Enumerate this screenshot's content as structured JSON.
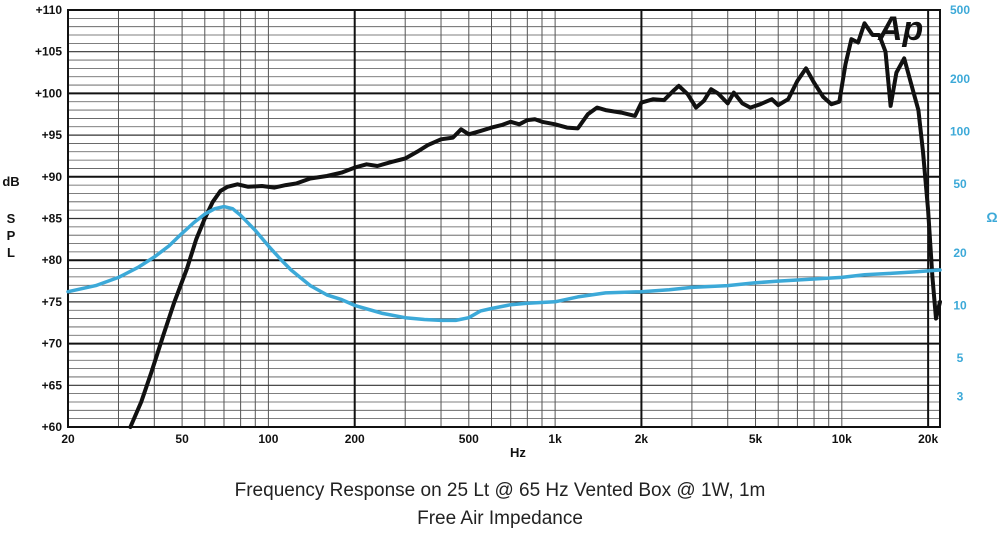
{
  "chart_data": {
    "type": "line",
    "title": "Frequency Response on 25 Lt @ 65 Hz Vented Box @ 1W, 1m",
    "subtitle": "Free Air Impedance",
    "logo": "Ap",
    "xlabel": "Hz",
    "ylabel": "dB SPL",
    "ylabel_right": "Ω",
    "x_scale": "log",
    "xlim": [
      20,
      22000
    ],
    "ylim": [
      60,
      110
    ],
    "y2_scale": "log",
    "y2lim": [
      2,
      500
    ],
    "grid": true,
    "x_ticks": [
      {
        "v": 20,
        "label": "20"
      },
      {
        "v": 50,
        "label": "50"
      },
      {
        "v": 100,
        "label": "100"
      },
      {
        "v": 200,
        "label": "200"
      },
      {
        "v": 500,
        "label": "500"
      },
      {
        "v": 1000,
        "label": "1k"
      },
      {
        "v": 2000,
        "label": "2k"
      },
      {
        "v": 5000,
        "label": "5k"
      },
      {
        "v": 10000,
        "label": "10k"
      },
      {
        "v": 20000,
        "label": "20k"
      }
    ],
    "y_ticks": [
      {
        "v": 60,
        "label": "+60"
      },
      {
        "v": 65,
        "label": "+65"
      },
      {
        "v": 70,
        "label": "+70"
      },
      {
        "v": 75,
        "label": "+75"
      },
      {
        "v": 80,
        "label": "+80"
      },
      {
        "v": 85,
        "label": "+85"
      },
      {
        "v": 90,
        "label": "+90"
      },
      {
        "v": 95,
        "label": "+95"
      },
      {
        "v": 100,
        "label": "+100"
      },
      {
        "v": 105,
        "label": "+105"
      },
      {
        "v": 110,
        "label": "+110"
      }
    ],
    "y2_ticks": [
      {
        "v": 3,
        "label": "3"
      },
      {
        "v": 5,
        "label": "5"
      },
      {
        "v": 10,
        "label": "10"
      },
      {
        "v": 20,
        "label": "20"
      },
      {
        "v": 50,
        "label": "50"
      },
      {
        "v": 100,
        "label": "100"
      },
      {
        "v": 200,
        "label": "200"
      },
      {
        "v": 500,
        "label": "500"
      }
    ],
    "series": [
      {
        "color": "#111111",
        "axis": "left",
        "points": [
          [
            33,
            60
          ],
          [
            36,
            63
          ],
          [
            39,
            66.5
          ],
          [
            43,
            71
          ],
          [
            47,
            75
          ],
          [
            52,
            79
          ],
          [
            56,
            82.5
          ],
          [
            60,
            85
          ],
          [
            64,
            87
          ],
          [
            68,
            88.3
          ],
          [
            72,
            88.8
          ],
          [
            78,
            89.1
          ],
          [
            85,
            88.8
          ],
          [
            95,
            88.9
          ],
          [
            105,
            88.7
          ],
          [
            115,
            89
          ],
          [
            125,
            89.2
          ],
          [
            140,
            89.8
          ],
          [
            160,
            90.1
          ],
          [
            180,
            90.5
          ],
          [
            200,
            91.1
          ],
          [
            220,
            91.5
          ],
          [
            240,
            91.3
          ],
          [
            270,
            91.8
          ],
          [
            300,
            92.2
          ],
          [
            330,
            93
          ],
          [
            360,
            93.8
          ],
          [
            400,
            94.5
          ],
          [
            440,
            94.7
          ],
          [
            470,
            95.7
          ],
          [
            500,
            95.1
          ],
          [
            550,
            95.5
          ],
          [
            600,
            95.9
          ],
          [
            650,
            96.2
          ],
          [
            700,
            96.6
          ],
          [
            750,
            96.3
          ],
          [
            800,
            96.8
          ],
          [
            850,
            96.9
          ],
          [
            900,
            96.6
          ],
          [
            1000,
            96.3
          ],
          [
            1100,
            95.9
          ],
          [
            1200,
            95.8
          ],
          [
            1300,
            97.5
          ],
          [
            1400,
            98.3
          ],
          [
            1500,
            98
          ],
          [
            1700,
            97.7
          ],
          [
            1900,
            97.3
          ],
          [
            2000,
            98.9
          ],
          [
            2200,
            99.3
          ],
          [
            2400,
            99.2
          ],
          [
            2600,
            100.4
          ],
          [
            2700,
            100.9
          ],
          [
            2900,
            99.9
          ],
          [
            3100,
            98.3
          ],
          [
            3300,
            99.1
          ],
          [
            3500,
            100.5
          ],
          [
            3700,
            100
          ],
          [
            4000,
            98.8
          ],
          [
            4200,
            100.1
          ],
          [
            4500,
            98.8
          ],
          [
            4800,
            98.3
          ],
          [
            5200,
            98.7
          ],
          [
            5700,
            99.3
          ],
          [
            6000,
            98.6
          ],
          [
            6500,
            99.3
          ],
          [
            7000,
            101.5
          ],
          [
            7500,
            103
          ],
          [
            8000,
            101.3
          ],
          [
            8600,
            99.6
          ],
          [
            9200,
            98.7
          ],
          [
            9800,
            99
          ],
          [
            10300,
            103.5
          ],
          [
            10800,
            106.5
          ],
          [
            11400,
            106.1
          ],
          [
            12000,
            108.4
          ],
          [
            12800,
            107
          ],
          [
            13500,
            107
          ],
          [
            14200,
            105
          ],
          [
            14800,
            98.5
          ],
          [
            15500,
            102.5
          ],
          [
            16500,
            104.2
          ],
          [
            17500,
            101
          ],
          [
            18500,
            98
          ],
          [
            19200,
            93
          ],
          [
            20000,
            86
          ],
          [
            20700,
            78
          ],
          [
            21300,
            73
          ],
          [
            22000,
            75
          ]
        ]
      },
      {
        "color": "#3ca9d8",
        "axis": "right",
        "points": [
          [
            20,
            12
          ],
          [
            25,
            13
          ],
          [
            30,
            14.5
          ],
          [
            35,
            16.5
          ],
          [
            40,
            19
          ],
          [
            45,
            22
          ],
          [
            50,
            26
          ],
          [
            55,
            30
          ],
          [
            60,
            33.5
          ],
          [
            65,
            36
          ],
          [
            70,
            37
          ],
          [
            75,
            36
          ],
          [
            80,
            33
          ],
          [
            90,
            27
          ],
          [
            100,
            22
          ],
          [
            110,
            18.5
          ],
          [
            120,
            16
          ],
          [
            140,
            13
          ],
          [
            160,
            11.5
          ],
          [
            180,
            10.8
          ],
          [
            200,
            10
          ],
          [
            250,
            9
          ],
          [
            300,
            8.5
          ],
          [
            350,
            8.3
          ],
          [
            400,
            8.2
          ],
          [
            450,
            8.2
          ],
          [
            500,
            8.5
          ],
          [
            550,
            9.3
          ],
          [
            600,
            9.6
          ],
          [
            700,
            10.1
          ],
          [
            800,
            10.3
          ],
          [
            1000,
            10.5
          ],
          [
            1200,
            11.2
          ],
          [
            1500,
            11.8
          ],
          [
            2000,
            12
          ],
          [
            2500,
            12.3
          ],
          [
            3000,
            12.7
          ],
          [
            4000,
            13
          ],
          [
            5000,
            13.5
          ],
          [
            6000,
            13.8
          ],
          [
            7000,
            14
          ],
          [
            8000,
            14.2
          ],
          [
            10000,
            14.5
          ],
          [
            12000,
            15
          ],
          [
            15000,
            15.3
          ],
          [
            18000,
            15.6
          ],
          [
            20000,
            15.8
          ],
          [
            22000,
            16
          ]
        ]
      }
    ]
  }
}
